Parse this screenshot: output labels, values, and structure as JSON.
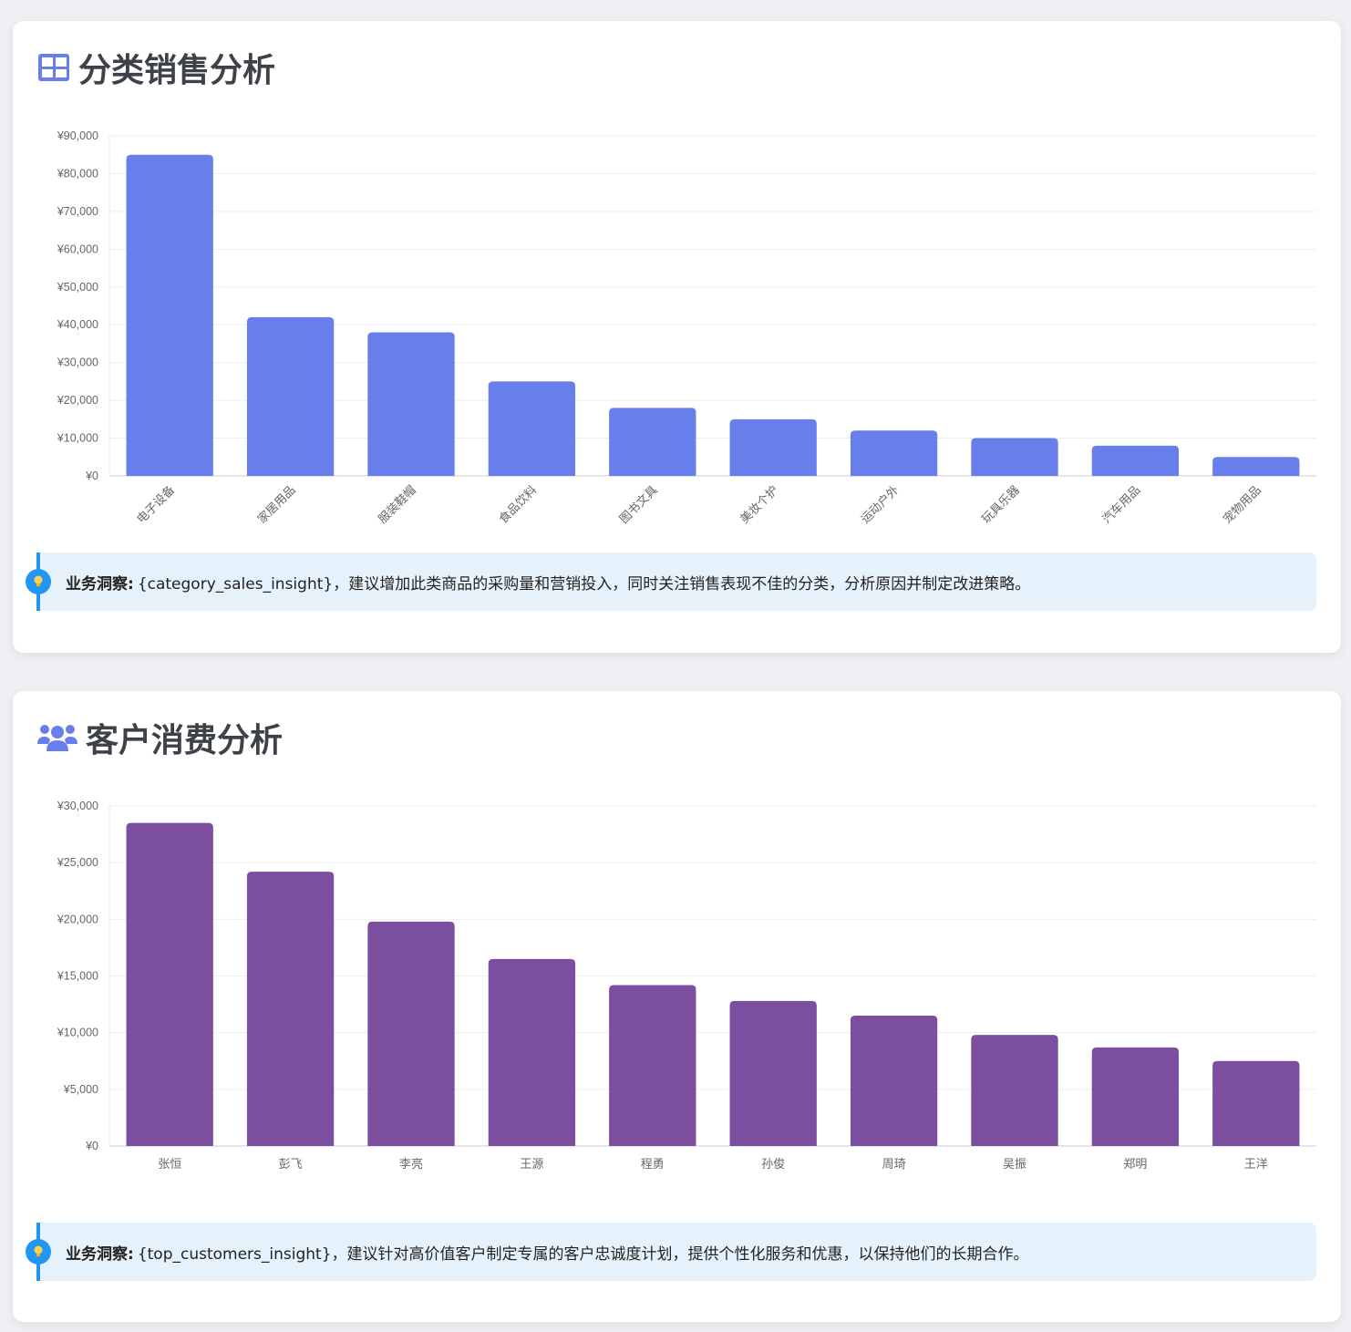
{
  "cards": [
    {
      "title": "分类销售分析",
      "icon": "table-icon",
      "insight_label": "业务洞察:",
      "insight_text": " {category_sales_insight}，建议增加此类商品的采购量和营销投入，同时关注销售表现不佳的分类，分析原因并制定改进策略。"
    },
    {
      "title": "客户消费分析",
      "icon": "users-icon",
      "insight_label": "业务洞察:",
      "insight_text": " {top_customers_insight}，建议针对高价值客户制定专属的客户忠诚度计划，提供个性化服务和优惠，以保持他们的长期合作。"
    }
  ],
  "colors": {
    "bar1": "#687eea",
    "bar2": "#7b4e9f",
    "accent": "#2196f3",
    "grid": "#eeeeee"
  },
  "chart_data": [
    {
      "type": "bar",
      "categories": [
        "电子设备",
        "家居用品",
        "服装鞋帽",
        "食品饮料",
        "图书文具",
        "美妆个护",
        "运动户外",
        "玩具乐器",
        "汽车用品",
        "宠物用品"
      ],
      "values": [
        85000,
        42000,
        38000,
        25000,
        18000,
        15000,
        12000,
        10000,
        8000,
        5000
      ],
      "ylim": [
        0,
        90000
      ],
      "yticks": [
        0,
        10000,
        20000,
        30000,
        40000,
        50000,
        60000,
        70000,
        80000,
        90000
      ],
      "ytick_labels": [
        "¥0",
        "¥10,000",
        "¥20,000",
        "¥30,000",
        "¥40,000",
        "¥50,000",
        "¥60,000",
        "¥70,000",
        "¥80,000",
        "¥90,000"
      ],
      "xlabel_rotated": true,
      "grid": true,
      "color": "#687eea"
    },
    {
      "type": "bar",
      "categories": [
        "张恒",
        "彭飞",
        "李亮",
        "王源",
        "程勇",
        "孙俊",
        "周琦",
        "吴振",
        "郑明",
        "王洋"
      ],
      "values": [
        28500,
        24200,
        19800,
        16500,
        14200,
        12800,
        11500,
        9800,
        8700,
        7500
      ],
      "ylim": [
        0,
        30000
      ],
      "yticks": [
        0,
        5000,
        10000,
        15000,
        20000,
        25000,
        30000
      ],
      "ytick_labels": [
        "¥0",
        "¥5,000",
        "¥10,000",
        "¥15,000",
        "¥20,000",
        "¥25,000",
        "¥30,000"
      ],
      "xlabel_rotated": false,
      "grid": true,
      "color": "#7b4e9f"
    }
  ]
}
